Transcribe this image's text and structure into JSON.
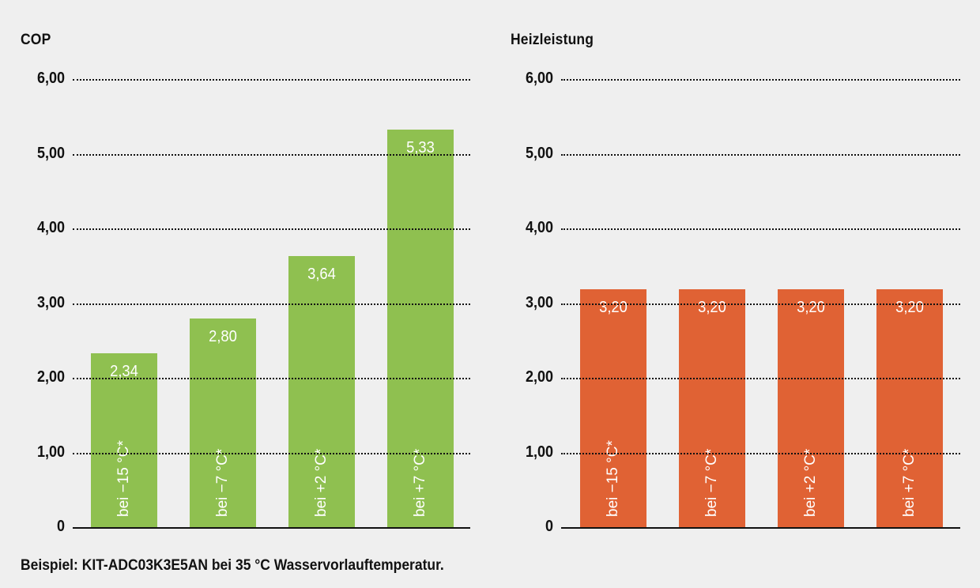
{
  "chart_data": [
    {
      "type": "bar",
      "title": "COP",
      "categories": [
        "bei −15 °C*",
        "bei −7 °C*",
        "bei +2 °C*",
        "bei +7 °C*"
      ],
      "values": [
        2.34,
        2.8,
        3.64,
        5.33
      ],
      "value_labels": [
        "2,34",
        "2,80",
        "3,64",
        "5,33"
      ],
      "color": "#8fc050",
      "xlabel": "",
      "ylabel": "",
      "ylim": [
        0,
        6
      ],
      "yticks": [
        "0",
        "1,00",
        "2,00",
        "3,00",
        "4,00",
        "5,00",
        "6,00"
      ],
      "grid": "dotted horizontal"
    },
    {
      "type": "bar",
      "title": "Heizleistung",
      "categories": [
        "bei −15 °C*",
        "bei −7 °C*",
        "bei +2 °C*",
        "bei +7 °C*"
      ],
      "values": [
        3.2,
        3.2,
        3.2,
        3.2
      ],
      "value_labels": [
        "3,20",
        "3,20",
        "3,20",
        "3,20"
      ],
      "color": "#e06234",
      "xlabel": "",
      "ylabel": "",
      "ylim": [
        0,
        6
      ],
      "yticks": [
        "0",
        "1,00",
        "2,00",
        "3,00",
        "4,00",
        "5,00",
        "6,00"
      ],
      "grid": "dotted horizontal"
    }
  ],
  "footnote": "Beispiel: KIT-ADC03K3E5AN bei 35 °C Wasservorlauftemperatur."
}
